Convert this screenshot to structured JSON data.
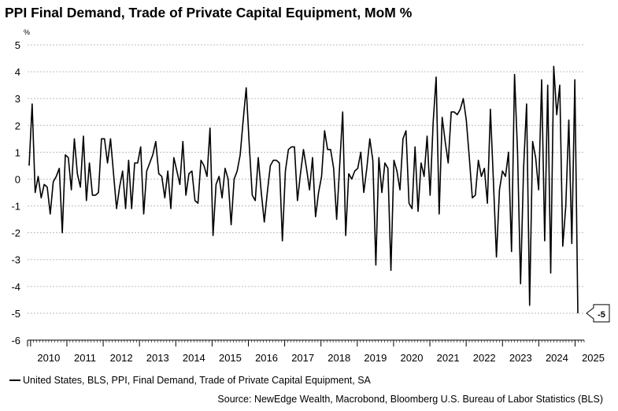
{
  "title": "PPI Final Demand, Trade of Private Capital Equipment, MoM %",
  "chart_data": {
    "type": "line",
    "title": "PPI Final Demand, Trade of Private Capital Equipment, MoM %",
    "unit_label": "%",
    "ylim": [
      -6,
      5
    ],
    "yticks": [
      "5",
      "4",
      "3",
      "2",
      "1",
      "0",
      "-1",
      "-2",
      "-3",
      "-4",
      "-5",
      "-6"
    ],
    "x_start": "2009-12",
    "x_end": "2025-04",
    "xticks": [
      "2010",
      "2011",
      "2012",
      "2013",
      "2014",
      "2015",
      "2016",
      "2017",
      "2018",
      "2019",
      "2020",
      "2021",
      "2022",
      "2023",
      "2024",
      "2025"
    ],
    "grid": true,
    "legend_position": "bottom-left",
    "series": [
      {
        "name": "United States, BLS, PPI, Final Demand, Trade of Private Capital Equipment, SA",
        "color": "#000000",
        "values": [
          0.5,
          2.8,
          -0.5,
          0.1,
          -0.7,
          -0.2,
          -0.3,
          -1.3,
          -0.1,
          0.1,
          0.4,
          -2.0,
          0.9,
          0.8,
          -0.4,
          1.5,
          0.2,
          -0.3,
          1.6,
          -0.8,
          0.6,
          -0.6,
          -0.6,
          -0.5,
          1.5,
          1.5,
          0.6,
          1.5,
          0.2,
          -1.1,
          -0.3,
          0.3,
          -1.1,
          0.7,
          -1.1,
          0.6,
          0.6,
          1.2,
          -1.3,
          0.3,
          0.6,
          0.9,
          1.4,
          0.2,
          0.1,
          -0.7,
          0.3,
          -1.1,
          0.8,
          0.3,
          -0.2,
          1.4,
          -0.6,
          0.2,
          0.3,
          -0.8,
          -0.9,
          0.7,
          0.5,
          0.1,
          1.9,
          -2.1,
          -0.2,
          0.1,
          -0.7,
          0.4,
          0.0,
          -1.7,
          0.0,
          0.3,
          0.9,
          2.2,
          3.4,
          1.3,
          -0.6,
          -0.8,
          0.8,
          -0.5,
          -1.6,
          -0.5,
          0.5,
          0.7,
          0.7,
          0.6,
          -2.3,
          0.3,
          1.1,
          1.2,
          1.2,
          -0.8,
          0.2,
          1.1,
          0.4,
          -0.4,
          0.8,
          -1.4,
          -0.5,
          0.1,
          1.8,
          1.1,
          1.1,
          0.4,
          -1.5,
          0.5,
          2.5,
          -2.1,
          0.2,
          0.0,
          0.3,
          0.4,
          1.0,
          -0.5,
          0.4,
          1.5,
          0.7,
          -3.2,
          0.8,
          -0.5,
          0.6,
          0.4,
          -3.4,
          0.7,
          0.3,
          -0.4,
          1.5,
          1.8,
          -0.9,
          -1.1,
          1.2,
          -1.2,
          0.6,
          0.1,
          1.6,
          -0.6,
          2.1,
          3.8,
          -1.3,
          2.3,
          1.4,
          0.6,
          2.5,
          2.5,
          2.4,
          2.6,
          3.0,
          2.2,
          0.8,
          -0.7,
          -0.6,
          0.7,
          0.1,
          0.4,
          -0.9,
          2.6,
          -0.1,
          -2.9,
          -0.4,
          0.3,
          0.1,
          1.0,
          -2.7,
          3.9,
          1.0,
          -3.9,
          0.4,
          2.8,
          -4.7,
          1.4,
          0.8,
          -0.4,
          3.7,
          -2.3,
          3.5,
          -3.5,
          4.2,
          2.4,
          3.5,
          -2.5,
          -1.0,
          2.2,
          -2.4,
          3.7,
          -5.0
        ]
      }
    ],
    "last_value_label": "-5"
  },
  "legend": {
    "label": "United States, BLS, PPI, Final Demand, Trade of Private Capital Equipment, SA"
  },
  "source": "Source: NewEdge Wealth, Macrobond, Bloomberg U.S. Bureau of Labor Statistics (BLS)"
}
